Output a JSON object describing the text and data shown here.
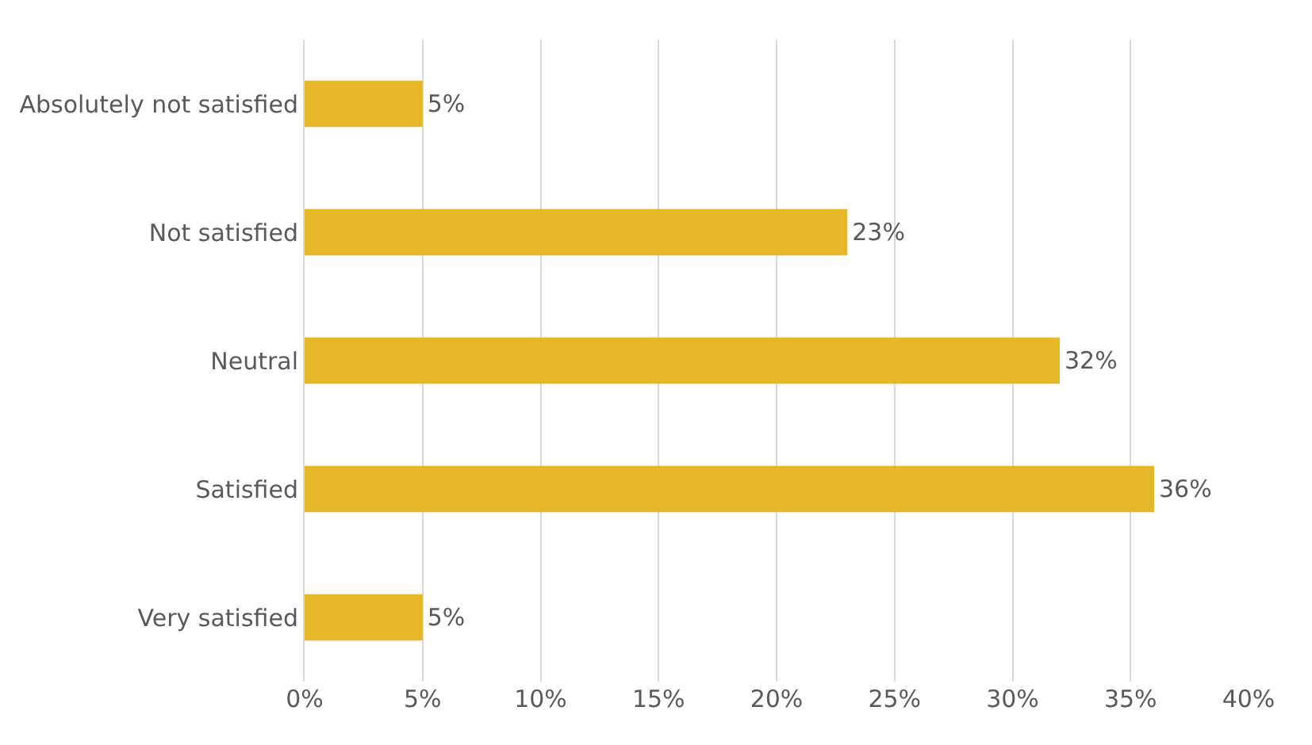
{
  "chart_data": {
    "type": "bar",
    "orientation": "horizontal",
    "categories": [
      "Absolutely not satisfied",
      "Not satisfied",
      "Neutral",
      "Satisfied",
      "Very satisfied"
    ],
    "values": [
      5,
      23,
      32,
      36,
      5
    ],
    "value_labels": [
      "5%",
      "23%",
      "32%",
      "36%",
      "5%"
    ],
    "color": "#e6b729",
    "xlim": [
      0,
      40
    ],
    "xticks": [
      {
        "value": 0,
        "label": "0%"
      },
      {
        "value": 5,
        "label": "5%"
      },
      {
        "value": 10,
        "label": "10%"
      },
      {
        "value": 15,
        "label": "15%"
      },
      {
        "value": 20,
        "label": "20%"
      },
      {
        "value": 25,
        "label": "25%"
      },
      {
        "value": 30,
        "label": "30%"
      },
      {
        "value": 35,
        "label": "35%"
      },
      {
        "value": 40,
        "label": "40%"
      }
    ],
    "grid": "x",
    "legend": false
  }
}
